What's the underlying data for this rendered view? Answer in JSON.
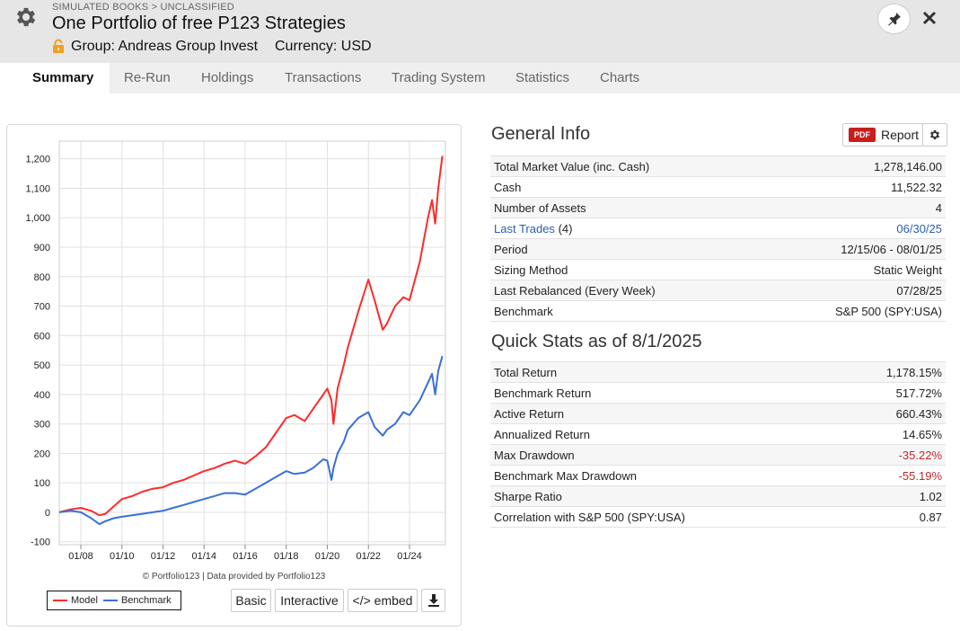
{
  "header": {
    "breadcrumb": "SIMULATED BOOKS > UNCLASSIFIED",
    "title": "One Portfolio of free P123 Strategies",
    "group": "Group: Andreas Group Invest",
    "currency": "Currency: USD"
  },
  "tabs": [
    "Summary",
    "Re-Run",
    "Holdings",
    "Transactions",
    "Trading System",
    "Statistics",
    "Charts"
  ],
  "chart": {
    "credit": "© Portfolio123 | Data provided by Portfolio123",
    "buttons": {
      "basic": "Basic",
      "interactive": "Interactive",
      "embed": "</> embed"
    }
  },
  "chart_data": {
    "type": "line",
    "title": "",
    "xlabel": "",
    "ylabel": "",
    "x_ticks": [
      "01/08",
      "01/10",
      "01/12",
      "01/14",
      "01/16",
      "01/18",
      "01/20",
      "01/22",
      "01/24"
    ],
    "y_ticks": [
      -100,
      0,
      100,
      200,
      300,
      400,
      500,
      600,
      700,
      800,
      900,
      1000,
      1100,
      1200
    ],
    "ylim": [
      -110,
      1260
    ],
    "xlim": [
      2006.95,
      2025.75
    ],
    "x": [
      2006.95,
      2007.5,
      2008.0,
      2008.5,
      2008.9,
      2009.2,
      2009.6,
      2010.0,
      2010.5,
      2011.0,
      2011.5,
      2012.0,
      2012.5,
      2013.0,
      2013.5,
      2014.0,
      2014.5,
      2015.0,
      2015.5,
      2016.0,
      2016.5,
      2017.0,
      2017.5,
      2018.0,
      2018.4,
      2018.9,
      2019.3,
      2019.8,
      2020.0,
      2020.2,
      2020.3,
      2020.5,
      2020.8,
      2021.0,
      2021.5,
      2022.0,
      2022.3,
      2022.7,
      2022.9,
      2023.3,
      2023.7,
      2024.0,
      2024.5,
      2024.9,
      2025.1,
      2025.25,
      2025.4,
      2025.6
    ],
    "series": [
      {
        "name": "Model",
        "color": "#ff2a2a",
        "values": [
          0,
          10,
          15,
          5,
          -10,
          -5,
          20,
          45,
          55,
          70,
          80,
          85,
          100,
          110,
          125,
          140,
          150,
          165,
          175,
          165,
          190,
          220,
          270,
          320,
          330,
          310,
          350,
          400,
          420,
          380,
          300,
          420,
          500,
          560,
          680,
          790,
          720,
          620,
          640,
          700,
          730,
          720,
          850,
          1000,
          1060,
          980,
          1100,
          1210
        ]
      },
      {
        "name": "Benchmark",
        "color": "#3a6fd8",
        "values": [
          0,
          5,
          0,
          -20,
          -40,
          -30,
          -20,
          -15,
          -10,
          -5,
          0,
          5,
          15,
          25,
          35,
          45,
          55,
          65,
          65,
          60,
          80,
          100,
          120,
          140,
          130,
          135,
          150,
          180,
          175,
          110,
          150,
          200,
          240,
          280,
          320,
          340,
          290,
          260,
          280,
          300,
          340,
          330,
          380,
          440,
          470,
          400,
          480,
          530
        ]
      }
    ]
  },
  "general_info": {
    "title": "General Info",
    "report_label": "Report",
    "pdf_label": "PDF",
    "rows": [
      {
        "label": "Total Market Value (inc. Cash)",
        "value": "1,278,146.00"
      },
      {
        "label": "Cash",
        "value": "11,522.32"
      },
      {
        "label": "Number of Assets",
        "value": "4"
      },
      {
        "label": "Last Trades",
        "extra": "(4)",
        "value": "06/30/25",
        "link": true
      },
      {
        "label": "Period",
        "value": "12/15/06 - 08/01/25"
      },
      {
        "label": "Sizing Method",
        "value": "Static Weight"
      },
      {
        "label": "Last Rebalanced (Every Week)",
        "value": "07/28/25"
      },
      {
        "label": "Benchmark",
        "value": "S&P 500 (SPY:USA)"
      }
    ]
  },
  "quick_stats": {
    "title": "Quick Stats as of 8/1/2025",
    "rows": [
      {
        "label": "Total Return",
        "value": "1,178.15%"
      },
      {
        "label": "Benchmark Return",
        "value": "517.72%"
      },
      {
        "label": "Active Return",
        "value": "660.43%"
      },
      {
        "label": "Annualized Return",
        "value": "14.65%"
      },
      {
        "label": "Max Drawdown",
        "value": "-35.22%",
        "negative": true
      },
      {
        "label": "Benchmark Max Drawdown",
        "value": "-55.19%",
        "negative": true
      },
      {
        "label": "Sharpe Ratio",
        "value": "1.02"
      },
      {
        "label": "Correlation with S&P 500 (SPY:USA)",
        "value": "0.87"
      }
    ]
  }
}
